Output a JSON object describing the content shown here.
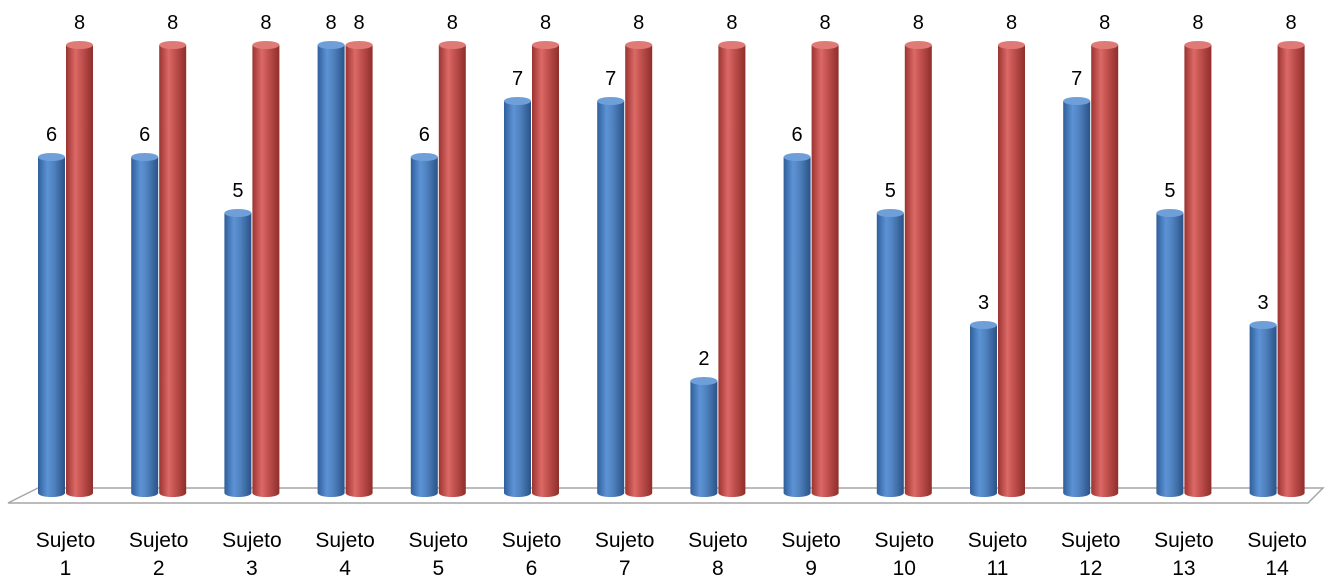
{
  "chart_data": {
    "type": "bar",
    "categories": [
      [
        "Sujeto",
        "1"
      ],
      [
        "Sujeto",
        "2"
      ],
      [
        "Sujeto",
        "3"
      ],
      [
        "Sujeto",
        "4"
      ],
      [
        "Sujeto",
        "5"
      ],
      [
        "Sujeto",
        "6"
      ],
      [
        "Sujeto",
        "7"
      ],
      [
        "Sujeto",
        "8"
      ],
      [
        "Sujeto",
        "9"
      ],
      [
        "Sujeto",
        "10"
      ],
      [
        "Sujeto",
        "11"
      ],
      [
        "Sujeto",
        "12"
      ],
      [
        "Sujeto",
        "13"
      ],
      [
        "Sujeto",
        "14"
      ]
    ],
    "series": [
      {
        "values": [
          6,
          6,
          5,
          8,
          6,
          7,
          7,
          2,
          6,
          5,
          3,
          7,
          5,
          3
        ],
        "color": "#4F81BD"
      },
      {
        "values": [
          8,
          8,
          8,
          8,
          8,
          8,
          8,
          8,
          8,
          8,
          8,
          8,
          8,
          8
        ],
        "color": "#C0504D"
      }
    ],
    "ylim": [
      0,
      8
    ],
    "data_labels": true,
    "legend": "none",
    "grid": false,
    "style": "3d-cylinder"
  }
}
